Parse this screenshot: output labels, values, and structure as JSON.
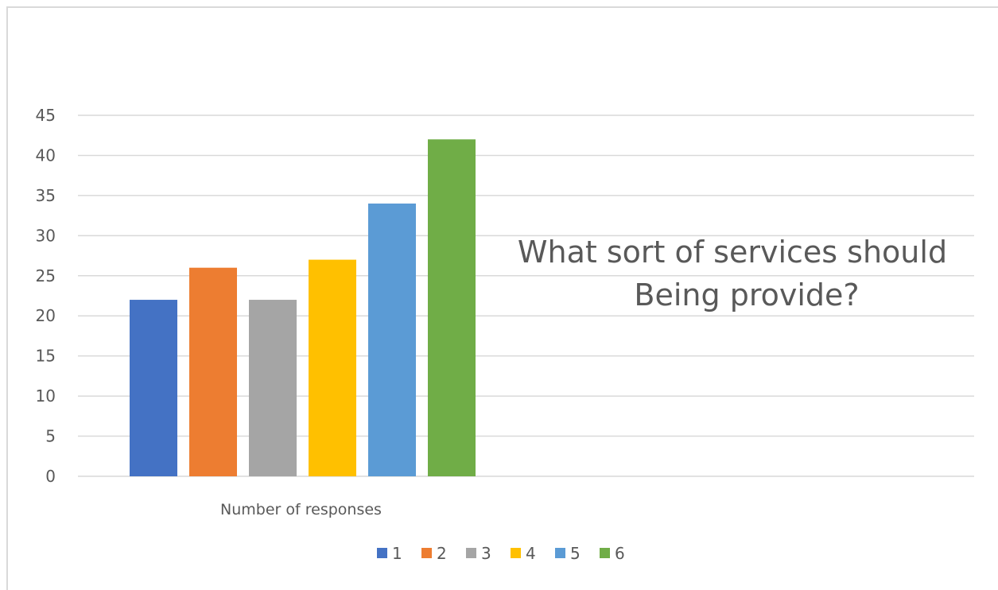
{
  "chart_data": {
    "type": "bar",
    "title_lines": [
      "What sort of services should",
      "Being provide?"
    ],
    "categories": [
      "Number of responses"
    ],
    "series": [
      {
        "name": "1",
        "values": [
          22
        ],
        "color": "#4472c4"
      },
      {
        "name": "2",
        "values": [
          26
        ],
        "color": "#ed7d31"
      },
      {
        "name": "3",
        "values": [
          22
        ],
        "color": "#a5a5a5"
      },
      {
        "name": "4",
        "values": [
          27
        ],
        "color": "#ffc000"
      },
      {
        "name": "5",
        "values": [
          34
        ],
        "color": "#5b9bd5"
      },
      {
        "name": "6",
        "values": [
          42
        ],
        "color": "#70ad47"
      }
    ],
    "xlabel": "",
    "ylabel": "",
    "ylim": [
      0,
      45
    ],
    "yticks": [
      "0",
      "5",
      "10",
      "15",
      "20",
      "25",
      "30",
      "35",
      "40",
      "45"
    ],
    "grid": true,
    "legend_position": "bottom"
  }
}
